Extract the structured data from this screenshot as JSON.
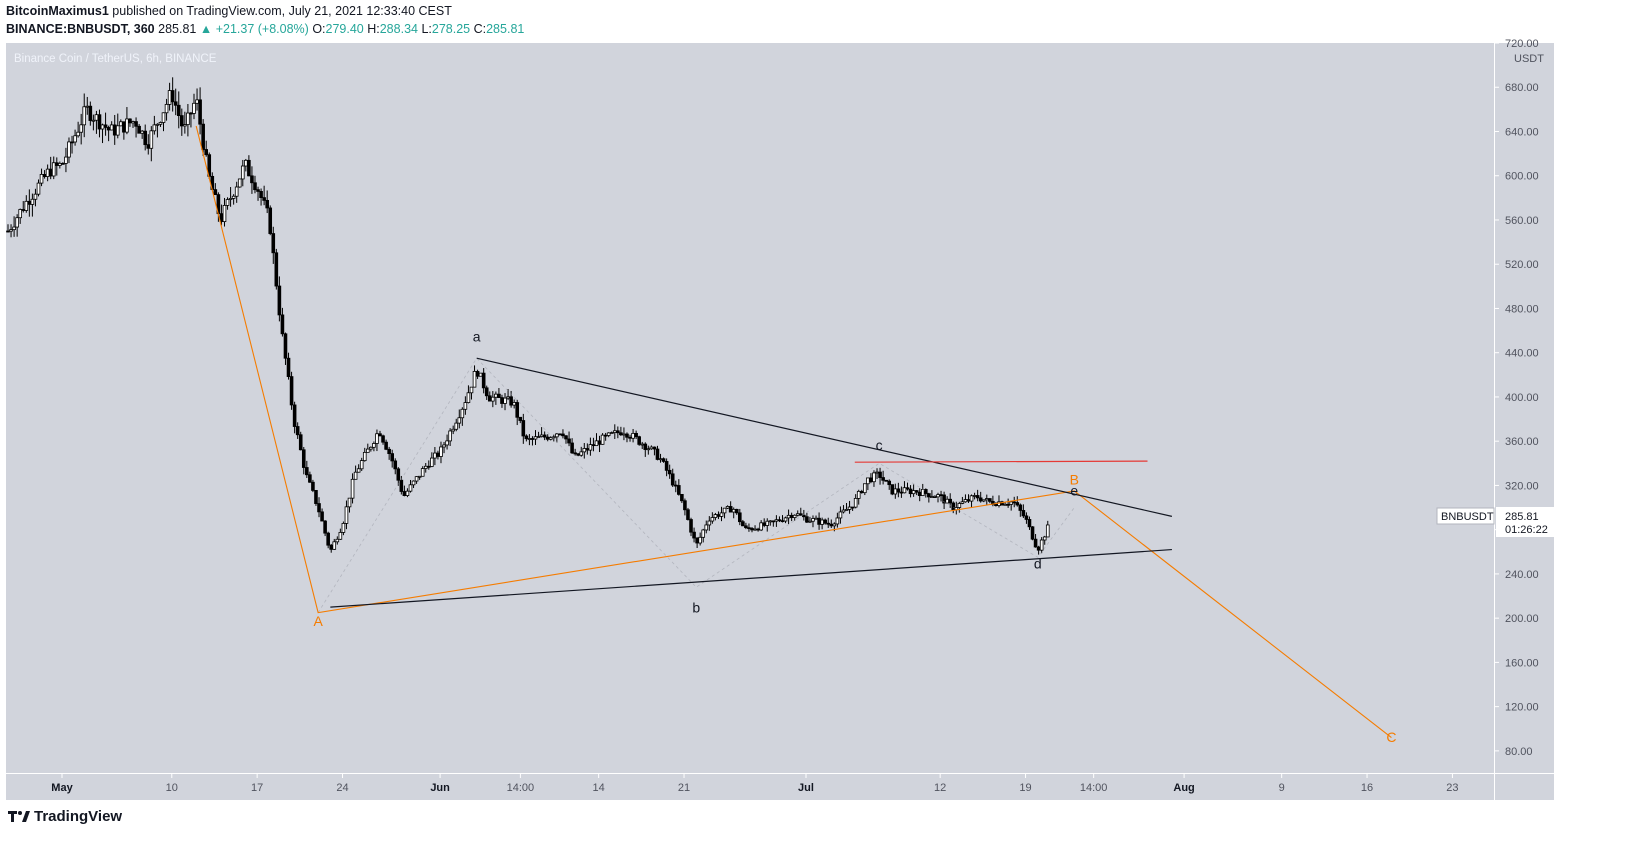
{
  "header": {
    "author": "BitcoinMaximus1",
    "published_text": "published on TradingView.com, July 21, 2021 12:33:40 CEST",
    "symbol": "BINANCE:BNBUSDT, 360",
    "last": "285.81",
    "change": "+21.37 (+8.08%)",
    "open_label": "O:",
    "open": "279.40",
    "high_label": "H:",
    "high": "288.34",
    "low_label": "L:",
    "low": "278.25",
    "close_label": "C:",
    "close": "285.81"
  },
  "footer": {
    "brand": "TradingView"
  },
  "chart_data": {
    "type": "candlestick",
    "title": "Binance Coin / TetherUS, 6h, BINANCE",
    "y_unit": "USDT",
    "ylim": [
      60,
      720
    ],
    "y_ticks": [
      "720.00",
      "680.00",
      "640.00",
      "600.00",
      "560.00",
      "520.00",
      "480.00",
      "440.00",
      "400.00",
      "360.00",
      "320.00",
      "280.00",
      "240.00",
      "200.00",
      "160.00",
      "120.00",
      "80.00"
    ],
    "x_ticks": [
      {
        "label": "May",
        "bold": true,
        "date": "2021-05-01"
      },
      {
        "label": "10",
        "bold": false,
        "date": "2021-05-10"
      },
      {
        "label": "17",
        "bold": false,
        "date": "2021-05-17"
      },
      {
        "label": "24",
        "bold": false,
        "date": "2021-05-24"
      },
      {
        "label": "Jun",
        "bold": true,
        "date": "2021-06-01"
      },
      {
        "label": "14:00",
        "bold": false,
        "date": "2021-06-07T14:00"
      },
      {
        "label": "14",
        "bold": false,
        "date": "2021-06-14"
      },
      {
        "label": "21",
        "bold": false,
        "date": "2021-06-21"
      },
      {
        "label": "Jul",
        "bold": true,
        "date": "2021-07-01"
      },
      {
        "label": "12",
        "bold": false,
        "date": "2021-07-12"
      },
      {
        "label": "19",
        "bold": false,
        "date": "2021-07-19"
      },
      {
        "label": "14:00",
        "bold": false,
        "date": "2021-07-24T14:00"
      },
      {
        "label": "Aug",
        "bold": true,
        "date": "2021-08-01"
      },
      {
        "label": "9",
        "bold": false,
        "date": "2021-08-09"
      },
      {
        "label": "16",
        "bold": false,
        "date": "2021-08-16"
      },
      {
        "label": "23",
        "bold": false,
        "date": "2021-08-23"
      }
    ],
    "price_path": [
      [
        "2021-04-26",
        540
      ],
      [
        "2021-04-28",
        575
      ],
      [
        "2021-04-30",
        605
      ],
      [
        "2021-05-01",
        610
      ],
      [
        "2021-05-03",
        660
      ],
      [
        "2021-05-05",
        640
      ],
      [
        "2021-05-07",
        650
      ],
      [
        "2021-05-08",
        630
      ],
      [
        "2021-05-10",
        675
      ],
      [
        "2021-05-11",
        640
      ],
      [
        "2021-05-12",
        670
      ],
      [
        "2021-05-13",
        600
      ],
      [
        "2021-05-14",
        560
      ],
      [
        "2021-05-16",
        610
      ],
      [
        "2021-05-17",
        590
      ],
      [
        "2021-05-18",
        560
      ],
      [
        "2021-05-19",
        460
      ],
      [
        "2021-05-20",
        380
      ],
      [
        "2021-05-21",
        330
      ],
      [
        "2021-05-22",
        300
      ],
      [
        "2021-05-23",
        260
      ],
      [
        "2021-05-24",
        285
      ],
      [
        "2021-05-25",
        330
      ],
      [
        "2021-05-27",
        370
      ],
      [
        "2021-05-28",
        345
      ],
      [
        "2021-05-29",
        310
      ],
      [
        "2021-05-31",
        340
      ],
      [
        "2021-06-01",
        350
      ],
      [
        "2021-06-03",
        395
      ],
      [
        "2021-06-04",
        425
      ],
      [
        "2021-06-05",
        400
      ],
      [
        "2021-06-07",
        395
      ],
      [
        "2021-06-08",
        360
      ],
      [
        "2021-06-10",
        365
      ],
      [
        "2021-06-11",
        370
      ],
      [
        "2021-06-12",
        345
      ],
      [
        "2021-06-14",
        360
      ],
      [
        "2021-06-16",
        370
      ],
      [
        "2021-06-18",
        355
      ],
      [
        "2021-06-19",
        345
      ],
      [
        "2021-06-20",
        325
      ],
      [
        "2021-06-21",
        300
      ],
      [
        "2021-06-22",
        265
      ],
      [
        "2021-06-23",
        290
      ],
      [
        "2021-06-25",
        300
      ],
      [
        "2021-06-26",
        280
      ],
      [
        "2021-06-28",
        285
      ],
      [
        "2021-06-30",
        295
      ],
      [
        "2021-07-01",
        290
      ],
      [
        "2021-07-03",
        285
      ],
      [
        "2021-07-05",
        305
      ],
      [
        "2021-07-06",
        325
      ],
      [
        "2021-07-07",
        330
      ],
      [
        "2021-07-08",
        315
      ],
      [
        "2021-07-10",
        315
      ],
      [
        "2021-07-12",
        310
      ],
      [
        "2021-07-13",
        300
      ],
      [
        "2021-07-15",
        310
      ],
      [
        "2021-07-16",
        305
      ],
      [
        "2021-07-18",
        305
      ],
      [
        "2021-07-19",
        290
      ],
      [
        "2021-07-20",
        262
      ],
      [
        "2021-07-21",
        285.81
      ]
    ],
    "annotations": {
      "wave_labels": [
        {
          "text": "A",
          "color": "#f57c00",
          "date": "2021-05-22",
          "price": 193
        },
        {
          "text": "a",
          "color": "#131722",
          "date": "2021-06-04",
          "price": 450
        },
        {
          "text": "b",
          "color": "#131722",
          "date": "2021-06-22",
          "price": 205
        },
        {
          "text": "c",
          "color": "#131722",
          "date": "2021-07-07",
          "price": 352
        },
        {
          "text": "d",
          "color": "#131722",
          "date": "2021-07-20",
          "price": 245
        },
        {
          "text": "e",
          "color": "#131722",
          "date": "2021-07-23",
          "price": 311
        },
        {
          "text": "B",
          "color": "#f57c00",
          "date": "2021-07-23",
          "price": 321
        },
        {
          "text": "C",
          "color": "#f57c00",
          "date": "2021-08-18",
          "price": 88
        }
      ],
      "trendlines": [
        {
          "name": "upper-triangle-line",
          "color": "#131722",
          "from": [
            "2021-06-04",
            435
          ],
          "to": [
            "2021-07-31",
            292
          ]
        },
        {
          "name": "lower-triangle-line",
          "color": "#131722",
          "from": [
            "2021-05-23",
            210
          ],
          "to": [
            "2021-07-31",
            262
          ]
        },
        {
          "name": "resistance-line",
          "color": "#e53935",
          "from": [
            "2021-07-05",
            341
          ],
          "to": [
            "2021-07-29",
            342
          ]
        }
      ],
      "wave_path": {
        "color": "#f57c00",
        "points": [
          [
            "2021-05-12",
            645
          ],
          [
            "2021-05-22",
            205
          ],
          [
            "2021-07-23",
            315
          ],
          [
            "2021-08-18",
            92
          ]
        ]
      },
      "sub_wave_path": {
        "color": "#9598a1",
        "points": [
          [
            "2021-05-22",
            205
          ],
          [
            "2021-06-04",
            435
          ],
          [
            "2021-06-22",
            228
          ],
          [
            "2021-07-07",
            340
          ],
          [
            "2021-07-20",
            255
          ],
          [
            "2021-07-23",
            300
          ]
        ]
      }
    },
    "last_price_label": {
      "symbol": "BNBUSDT",
      "price": "285.81",
      "countdown": "01:26:22"
    },
    "grid": false,
    "background": "#d1d4dc"
  }
}
